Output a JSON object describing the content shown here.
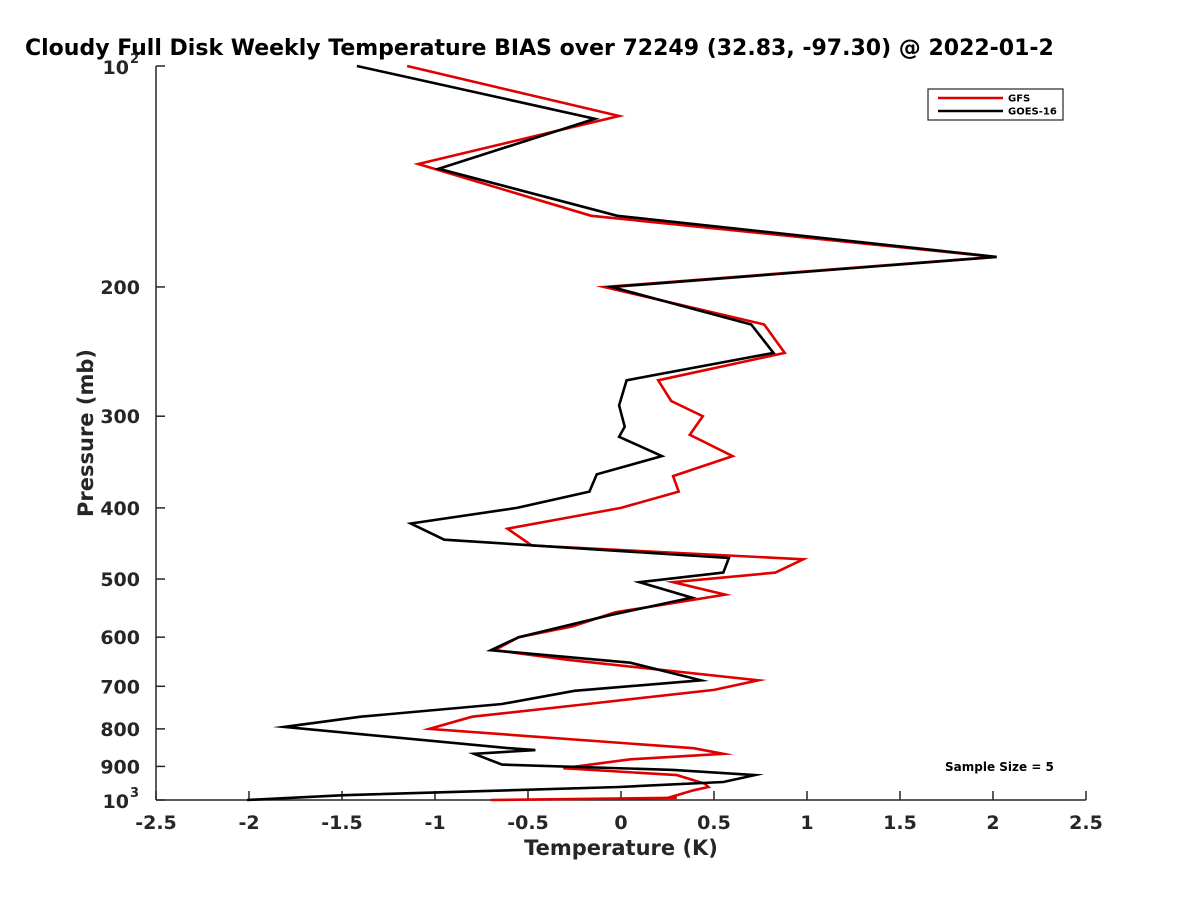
{
  "chart_data": {
    "type": "line",
    "title": "Cloudy Full Disk Weekly Temperature BIAS over 72249 (32.83, -97.30) @ 2022-01-2",
    "xlabel": "Temperature (K)",
    "ylabel": "Pressure (mb)",
    "xlim": [
      -2.5,
      2.5
    ],
    "ylim": [
      100,
      1000
    ],
    "y_scale": "log",
    "y_reversed": true,
    "x_ticks": [
      "-2.5",
      "-2",
      "-1.5",
      "-1",
      "-0.5",
      "0",
      "0.5",
      "1",
      "1.5",
      "2",
      "2.5"
    ],
    "y_ticks": [
      {
        "value": 100,
        "base": "10",
        "exp": "2"
      },
      {
        "value": 200,
        "base": "200",
        "exp": ""
      },
      {
        "value": 300,
        "base": "300",
        "exp": ""
      },
      {
        "value": 400,
        "base": "400",
        "exp": ""
      },
      {
        "value": 500,
        "base": "500",
        "exp": ""
      },
      {
        "value": 600,
        "base": "600",
        "exp": ""
      },
      {
        "value": 700,
        "base": "700",
        "exp": ""
      },
      {
        "value": 800,
        "base": "800",
        "exp": ""
      },
      {
        "value": 900,
        "base": "900",
        "exp": ""
      },
      {
        "value": 1000,
        "base": "10",
        "exp": "3"
      }
    ],
    "legend_position": "top-right",
    "grid": false,
    "annotation": "Sample Size = 5",
    "series": [
      {
        "name": "GFS",
        "color": "#e00000",
        "points": [
          [
            -1.15,
            100
          ],
          [
            -0.01,
            117
          ],
          [
            -1.09,
            136
          ],
          [
            -0.16,
            160
          ],
          [
            2.01,
            182
          ],
          [
            -0.09,
            200
          ],
          [
            0.77,
            225
          ],
          [
            0.88,
            246
          ],
          [
            0.2,
            268
          ],
          [
            0.27,
            286
          ],
          [
            0.44,
            300
          ],
          [
            0.37,
            318
          ],
          [
            0.6,
            340
          ],
          [
            0.28,
            362
          ],
          [
            0.31,
            380
          ],
          [
            0.0,
            400
          ],
          [
            -0.61,
            427
          ],
          [
            -0.48,
            450
          ],
          [
            0.98,
            470
          ],
          [
            0.83,
            490
          ],
          [
            0.28,
            505
          ],
          [
            0.56,
            525
          ],
          [
            -0.03,
            555
          ],
          [
            -0.26,
            580
          ],
          [
            -0.55,
            600
          ],
          [
            -0.68,
            625
          ],
          [
            -0.27,
            645
          ],
          [
            0.74,
            687
          ],
          [
            0.5,
            708
          ],
          [
            -0.18,
            740
          ],
          [
            -0.8,
            770
          ],
          [
            -1.03,
            800
          ],
          [
            0.39,
            850
          ],
          [
            0.55,
            865
          ],
          [
            0.05,
            880
          ],
          [
            -0.31,
            905
          ],
          [
            0.3,
            925
          ],
          [
            0.45,
            950
          ],
          [
            0.47,
            960
          ],
          [
            0.39,
            970
          ],
          [
            0.3,
            985
          ],
          [
            0.26,
            992
          ],
          [
            0.3,
            993
          ],
          [
            -0.7,
            1000
          ]
        ]
      },
      {
        "name": "GOES-16",
        "color": "#000000",
        "points": [
          [
            -1.42,
            100
          ],
          [
            -0.14,
            118
          ],
          [
            -0.98,
            138
          ],
          [
            -0.02,
            160
          ],
          [
            2.02,
            182
          ],
          [
            -0.05,
            200
          ],
          [
            0.7,
            225
          ],
          [
            0.82,
            246
          ],
          [
            0.03,
            268
          ],
          [
            -0.01,
            290
          ],
          [
            0.02,
            310
          ],
          [
            -0.01,
            320
          ],
          [
            0.22,
            340
          ],
          [
            -0.13,
            360
          ],
          [
            -0.17,
            380
          ],
          [
            -0.56,
            400
          ],
          [
            -1.13,
            420
          ],
          [
            -0.95,
            442
          ],
          [
            0.58,
            468
          ],
          [
            0.55,
            490
          ],
          [
            0.1,
            505
          ],
          [
            0.38,
            530
          ],
          [
            -0.06,
            560
          ],
          [
            -0.55,
            600
          ],
          [
            -0.7,
            625
          ],
          [
            0.05,
            650
          ],
          [
            0.43,
            687
          ],
          [
            -0.25,
            710
          ],
          [
            -0.64,
            740
          ],
          [
            -1.4,
            770
          ],
          [
            -1.81,
            795
          ],
          [
            -0.6,
            850
          ],
          [
            -0.46,
            855
          ],
          [
            -0.79,
            865
          ],
          [
            -0.64,
            895
          ],
          [
            0.28,
            910
          ],
          [
            0.72,
            925
          ],
          [
            0.55,
            945
          ],
          [
            -0.01,
            960
          ],
          [
            -1.49,
            985
          ],
          [
            -2.01,
            1000
          ]
        ]
      }
    ]
  }
}
